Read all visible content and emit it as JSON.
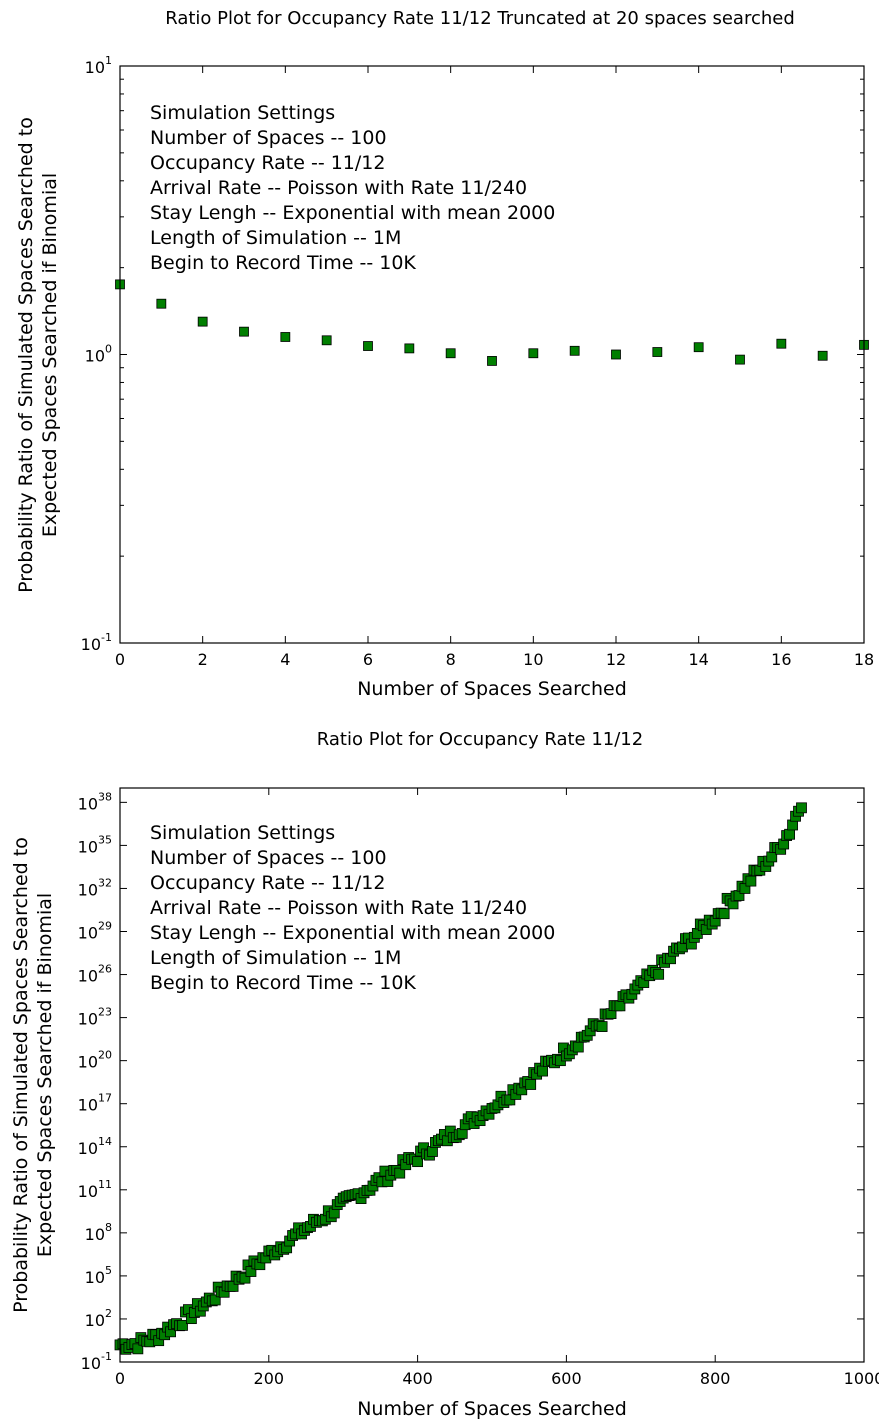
{
  "chart_data": [
    {
      "type": "scatter",
      "title": "Ratio Plot for Occupancy Rate 11/12 Truncated at 20 spaces searched",
      "xlabel": "Number of Spaces Searched",
      "ylabel_lines": [
        "Probability Ratio of Simulated Spaces Searched to",
        "Expected Spaces Searched if Binomial"
      ],
      "xlim": [
        0,
        18
      ],
      "ylim_log10": [
        -1,
        1
      ],
      "y_scale": "log",
      "x_ticks": [
        0,
        2,
        4,
        6,
        8,
        10,
        12,
        14,
        16,
        18
      ],
      "y_tick_exponents": [
        -1,
        0,
        1
      ],
      "marker_color": "#007f00",
      "marker": "square",
      "grid": false,
      "annotation": [
        "Simulation Settings",
        "Number of Spaces -- 100",
        "Occupancy Rate -- 11/12",
        "Arrival Rate -- Poisson with Rate 11/240",
        "Stay Lengh -- Exponential with mean 2000",
        "Length of Simulation -- 1M",
        "Begin to Record Time -- 10K"
      ],
      "x": [
        0,
        1,
        2,
        3,
        4,
        5,
        6,
        7,
        8,
        9,
        10,
        11,
        12,
        13,
        14,
        15,
        16,
        17,
        18
      ],
      "y": [
        1.75,
        1.5,
        1.3,
        1.2,
        1.15,
        1.12,
        1.07,
        1.05,
        1.01,
        0.95,
        1.01,
        1.03,
        1.0,
        1.02,
        1.06,
        0.96,
        1.09,
        0.99,
        1.08
      ]
    },
    {
      "type": "scatter",
      "title": "Ratio Plot for Occupancy Rate 11/12",
      "xlabel": "Number of Spaces Searched",
      "ylabel_lines": [
        "Probability Ratio of Simulated Spaces Searched to",
        "Expected Spaces Searched if Binomial"
      ],
      "xlim": [
        0,
        1000
      ],
      "ylim_log10": [
        -1,
        39
      ],
      "y_scale": "log",
      "x_ticks": [
        0,
        200,
        400,
        600,
        800,
        1000
      ],
      "y_tick_exponents": [
        -1,
        2,
        5,
        8,
        11,
        14,
        17,
        20,
        23,
        26,
        29,
        32,
        35,
        38
      ],
      "marker_color": "#007f00",
      "marker": "square",
      "grid": false,
      "annotation": [
        "Simulation Settings",
        "Number of Spaces -- 100",
        "Occupancy Rate -- 11/12",
        "Arrival Rate -- Poisson with Rate 11/240",
        "Stay Lengh -- Exponential with mean 2000",
        "Length of Simulation -- 1M",
        "Begin to Record Time -- 10K"
      ],
      "x_range": [
        0,
        918
      ],
      "x_step": 4,
      "curve_x": [
        0,
        25,
        50,
        100,
        150,
        200,
        250,
        300,
        350,
        400,
        450,
        500,
        550,
        600,
        650,
        700,
        750,
        800,
        850,
        880,
        900,
        918
      ],
      "curve_log10_y": [
        0.2,
        0.3,
        0.8,
        2.5,
        4.5,
        6.5,
        8.3,
        10.0,
        11.7,
        13.3,
        15.0,
        16.8,
        18.7,
        20.7,
        22.8,
        25.2,
        27.7,
        30.0,
        32.8,
        34.5,
        36.0,
        38.3
      ]
    }
  ]
}
